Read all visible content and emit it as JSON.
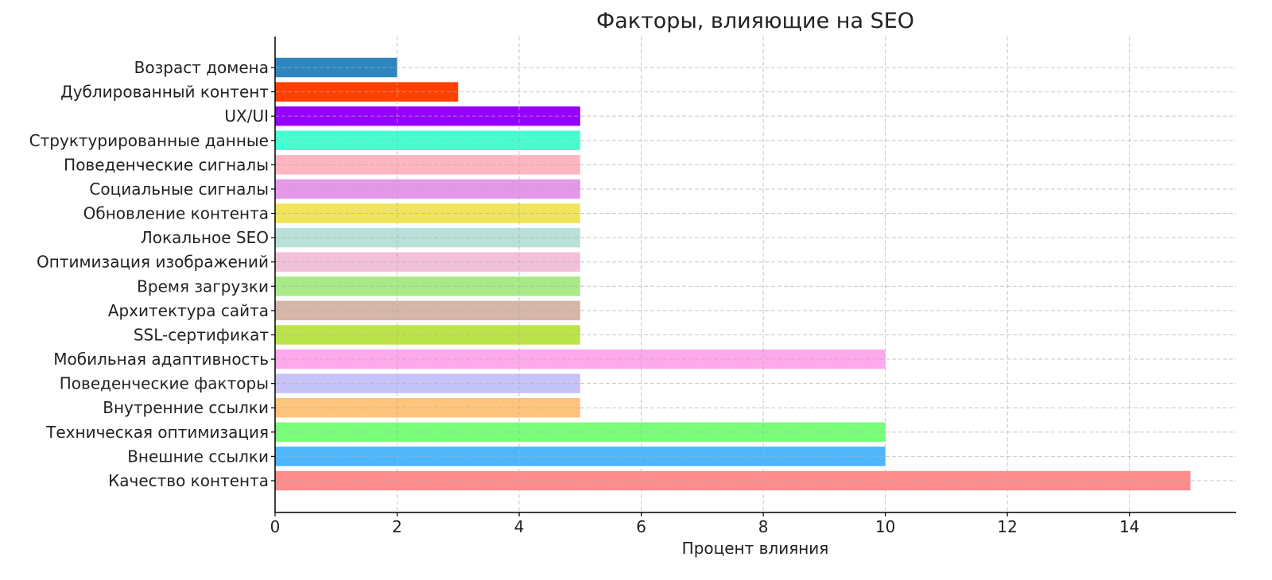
{
  "chart_data": {
    "type": "bar",
    "orientation": "horizontal",
    "title": "Факторы, влияющие на SEO",
    "xlabel": "Процент влияния",
    "ylabel": "",
    "xlim": [
      0,
      15.75
    ],
    "xticks": [
      0,
      2,
      4,
      6,
      8,
      10,
      12,
      14
    ],
    "grid": true,
    "categories": [
      "Качество контента",
      "Внешние ссылки",
      "Техническая оптимизация",
      "Внутренние ссылки",
      "Поведенческие факторы",
      "Мобильная адаптивность",
      "SSL-сертификат",
      "Архитектура сайта",
      "Время загрузки",
      "Оптимизация изображений",
      "Локальное SEO",
      "Обновление контента",
      "Социальные сигналы",
      "Поведенческие сигналы",
      "Структурированные данные",
      "UX/UI",
      "Дублированный контент",
      "Возраст домена"
    ],
    "values": [
      15,
      10,
      10,
      5,
      5,
      10,
      5,
      5,
      5,
      5,
      5,
      5,
      5,
      5,
      5,
      5,
      3,
      2
    ],
    "colors": [
      "#ff8c8c",
      "#4db7fd",
      "#79fe79",
      "#fec47b",
      "#c5c3f7",
      "#fda9ec",
      "#bde34a",
      "#d6b6a8",
      "#a8ea87",
      "#f2c0d9",
      "#bae0da",
      "#f1e35a",
      "#e597e8",
      "#ffb6c1",
      "#45ffd1",
      "#9600ff",
      "#ff4000",
      "#2e86c1"
    ]
  }
}
